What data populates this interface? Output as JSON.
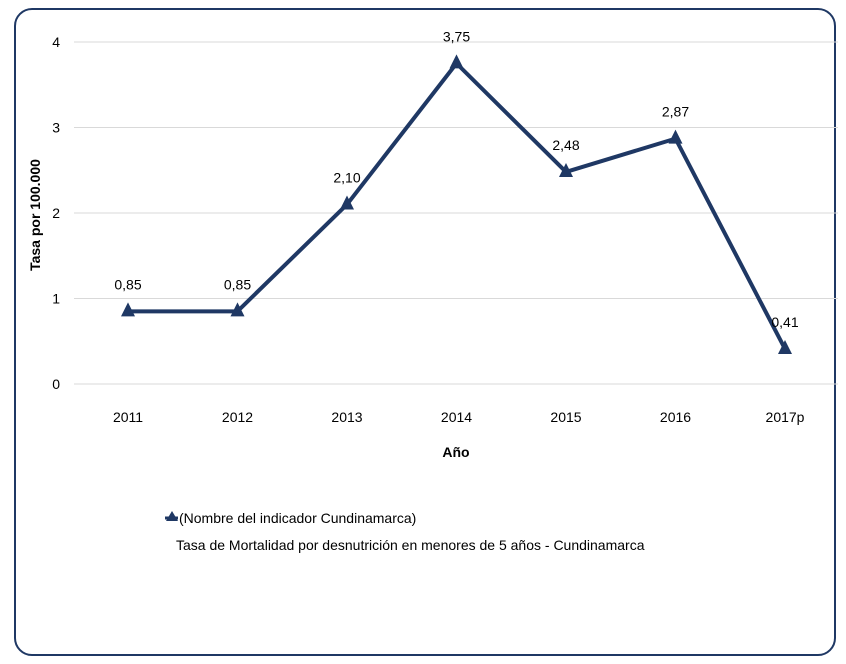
{
  "chart_data": {
    "type": "line",
    "categories": [
      "2011",
      "2012",
      "2013",
      "2014",
      "2015",
      "2016",
      "2017p"
    ],
    "series": [
      {
        "name": "(Nombre del indicador Cundinamarca)",
        "values": [
          0.85,
          0.85,
          2.1,
          3.75,
          2.48,
          2.87,
          0.41
        ],
        "data_labels": [
          "0,85",
          "0,85",
          "2,10",
          "3,75",
          "2,48",
          "2,87",
          "0,41"
        ],
        "color": "#1f3864",
        "marker": "triangle"
      }
    ],
    "title": "",
    "xlabel": "Año",
    "ylabel": "Tasa por 100.000",
    "ylim": [
      0,
      4
    ],
    "yticks": [
      "0",
      "1",
      "2",
      "3",
      "4"
    ],
    "grid": true,
    "legend_position": "bottom",
    "legend_caption": "Tasa de Mortalidad por desnutrición en menores de 5 años - Cundinamarca"
  }
}
